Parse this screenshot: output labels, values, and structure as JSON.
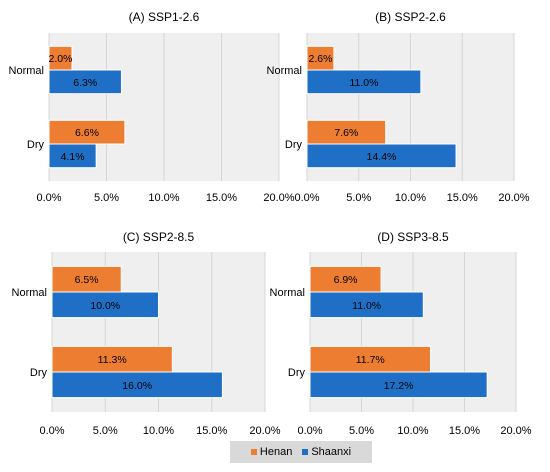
{
  "chart_data": [
    {
      "type": "bar",
      "orientation": "horizontal",
      "title": "(A) SSP1-2.6",
      "categories": [
        "Normal",
        "Dry"
      ],
      "series": [
        {
          "name": "Henan",
          "values": [
            2.0,
            6.6
          ],
          "labels": [
            "2.0%",
            "6.6%"
          ]
        },
        {
          "name": "Shaanxi",
          "values": [
            6.3,
            4.1
          ],
          "labels": [
            "6.3%",
            "4.1%"
          ]
        }
      ],
      "xlim": [
        0,
        20
      ],
      "xticks": [
        "0.0%",
        "5.0%",
        "10.0%",
        "15.0%",
        "20.0%"
      ],
      "grid": true
    },
    {
      "type": "bar",
      "orientation": "horizontal",
      "title": "(B) SSP2-2.6",
      "categories": [
        "Normal",
        "Dry"
      ],
      "series": [
        {
          "name": "Henan",
          "values": [
            2.6,
            7.6
          ],
          "labels": [
            "2.6%",
            "7.6%"
          ]
        },
        {
          "name": "Shaanxi",
          "values": [
            11.0,
            14.4
          ],
          "labels": [
            "11.0%",
            "14.4%"
          ]
        }
      ],
      "xlim": [
        0,
        20
      ],
      "xticks": [
        "0.0%",
        "5.0%",
        "10.0%",
        "15.0%",
        "20.0%"
      ],
      "grid": true
    },
    {
      "type": "bar",
      "orientation": "horizontal",
      "title": "(C) SSP2-8.5",
      "categories": [
        "Normal",
        "Dry"
      ],
      "series": [
        {
          "name": "Henan",
          "values": [
            6.5,
            11.3
          ],
          "labels": [
            "6.5%",
            "11.3%"
          ]
        },
        {
          "name": "Shaanxi",
          "values": [
            10.0,
            16.0
          ],
          "labels": [
            "10.0%",
            "16.0%"
          ]
        }
      ],
      "xlim": [
        0,
        20
      ],
      "xticks": [
        "0.0%",
        "5.0%",
        "10.0%",
        "15.0%",
        "20.0%"
      ],
      "grid": true
    },
    {
      "type": "bar",
      "orientation": "horizontal",
      "title": "(D) SSP3-8.5",
      "categories": [
        "Normal",
        "Dry"
      ],
      "series": [
        {
          "name": "Henan",
          "values": [
            6.9,
            11.7
          ],
          "labels": [
            "6.9%",
            "11.7%"
          ]
        },
        {
          "name": "Shaanxi",
          "values": [
            11.0,
            17.2
          ],
          "labels": [
            "11.0%",
            "17.2%"
          ]
        }
      ],
      "xlim": [
        0,
        20
      ],
      "xticks": [
        "0.0%",
        "5.0%",
        "10.0%",
        "15.0%",
        "20.0%"
      ],
      "grid": true
    }
  ],
  "legend": {
    "position": "bottom-center",
    "items": [
      {
        "name": "Henan",
        "color": "#ed7d31"
      },
      {
        "name": "Shaanxi",
        "color": "#1f6fc6"
      }
    ]
  },
  "colors": {
    "Henan": "#ed7d31",
    "Shaanxi": "#1f6fc6",
    "plot_bg": "#efefef",
    "grid": "#d6d6d6"
  }
}
